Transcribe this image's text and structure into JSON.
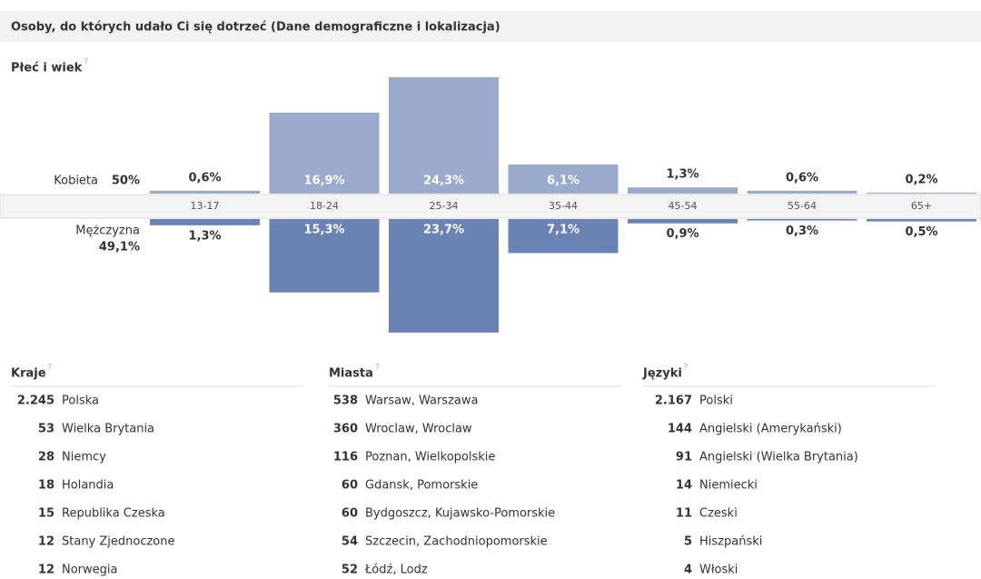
{
  "header": {
    "title": "Osoby, do których udało Ci się dotrzeć (Dane demograficzne i lokalizacja)"
  },
  "help_icon": "?",
  "chart_data": {
    "type": "butterfly-bar",
    "title": "Płeć i wiek",
    "categories": [
      "13-17",
      "18-24",
      "25-34",
      "35-44",
      "45-54",
      "55-64",
      "65+"
    ],
    "series": [
      {
        "name": "Kobieta",
        "share": "50%",
        "color": "#9aaacd",
        "values": [
          0.6,
          16.9,
          24.3,
          6.1,
          1.3,
          0.6,
          0.2
        ],
        "value_labels": [
          "0,6%",
          "16,9%",
          "24,3%",
          "6,1%",
          "1,3%",
          "0,6%",
          "0,2%"
        ]
      },
      {
        "name": "Mężczyzna",
        "share": "49,1%",
        "color": "#6a82b4",
        "values": [
          1.3,
          15.3,
          23.7,
          7.1,
          0.9,
          0.3,
          0.5
        ],
        "value_labels": [
          "1,3%",
          "15,3%",
          "23,7%",
          "7,1%",
          "0,9%",
          "0,3%",
          "0,5%"
        ]
      }
    ]
  },
  "lists": [
    {
      "title": "Kraje",
      "rows": [
        {
          "count": "2.245",
          "name": "Polska"
        },
        {
          "count": "53",
          "name": "Wielka Brytania"
        },
        {
          "count": "28",
          "name": "Niemcy"
        },
        {
          "count": "18",
          "name": "Holandia"
        },
        {
          "count": "15",
          "name": "Republika Czeska"
        },
        {
          "count": "12",
          "name": "Stany Zjednoczone"
        },
        {
          "count": "12",
          "name": "Norwegia"
        }
      ]
    },
    {
      "title": "Miasta",
      "rows": [
        {
          "count": "538",
          "name": "Warsaw, Warszawa"
        },
        {
          "count": "360",
          "name": "Wroclaw, Wroclaw"
        },
        {
          "count": "116",
          "name": "Poznan, Wielkopolskie"
        },
        {
          "count": "60",
          "name": "Gdansk, Pomorskie"
        },
        {
          "count": "60",
          "name": "Bydgoszcz, Kujawsko-Pomorskie"
        },
        {
          "count": "54",
          "name": "Szczecin, Zachodniopomorskie"
        },
        {
          "count": "52",
          "name": "Łódź, Lodz"
        }
      ]
    },
    {
      "title": "Języki",
      "rows": [
        {
          "count": "2.167",
          "name": "Polski"
        },
        {
          "count": "144",
          "name": "Angielski (Amerykański)"
        },
        {
          "count": "91",
          "name": "Angielski (Wielka Brytania)"
        },
        {
          "count": "14",
          "name": "Niemiecki"
        },
        {
          "count": "11",
          "name": "Czeski"
        },
        {
          "count": "5",
          "name": "Hiszpański"
        },
        {
          "count": "4",
          "name": "Włoski"
        }
      ]
    }
  ]
}
